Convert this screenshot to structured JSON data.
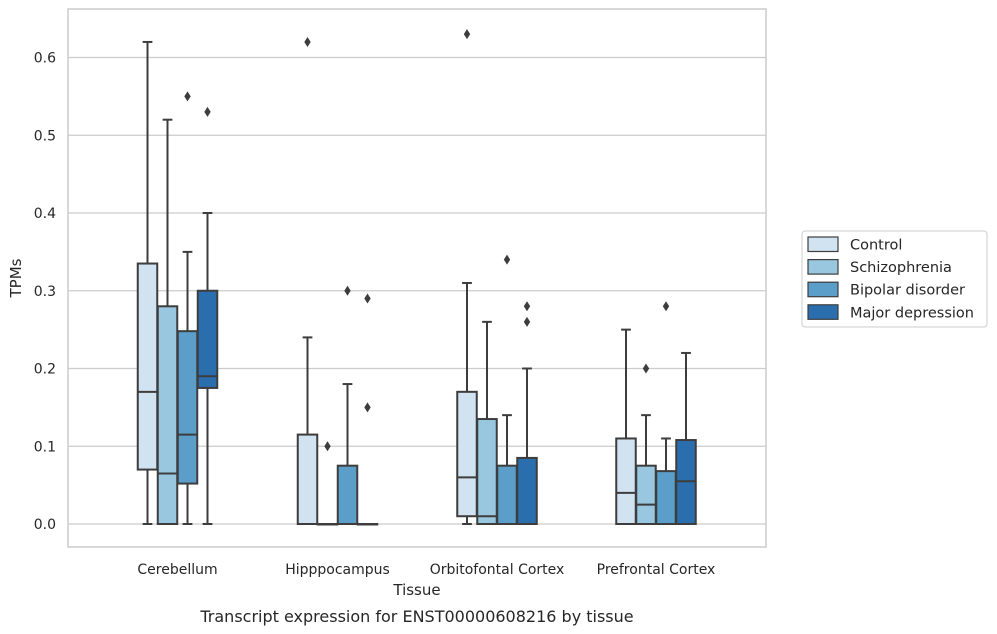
{
  "chart_data": {
    "type": "box",
    "xlabel": "Tissue",
    "ylabel": "TPMs",
    "caption": "Transcript expression for ENST00000608216 by tissue",
    "ylim": [
      -0.03,
      0.665
    ],
    "yticks": [
      "0.0",
      "0.1",
      "0.2",
      "0.3",
      "0.4",
      "0.5",
      "0.6"
    ],
    "grid": "horizontal",
    "legend_position": "right",
    "categories": [
      "Cerebellum",
      "Hipppocampus",
      "Orbitofontal Cortex",
      "Prefrontal Cortex"
    ],
    "series": [
      {
        "name": "Control",
        "color": "#d1e2f1",
        "boxes": [
          {
            "min": 0.0,
            "q1": 0.07,
            "median": 0.17,
            "q3": 0.335,
            "max": 0.62,
            "outliers": []
          },
          {
            "min": 0.0,
            "q1": 0.0,
            "median": 0.0,
            "q3": 0.115,
            "max": 0.24,
            "outliers": [
              0.62
            ]
          },
          {
            "min": 0.0,
            "q1": 0.01,
            "median": 0.06,
            "q3": 0.17,
            "max": 0.31,
            "outliers": [
              0.63
            ]
          },
          {
            "min": 0.0,
            "q1": 0.0,
            "median": 0.04,
            "q3": 0.11,
            "max": 0.25,
            "outliers": []
          }
        ]
      },
      {
        "name": "Schizophrenia",
        "color": "#9ac7e0",
        "boxes": [
          {
            "min": 0.0,
            "q1": 0.0,
            "median": 0.065,
            "q3": 0.28,
            "max": 0.52,
            "outliers": []
          },
          {
            "min": 0.0,
            "q1": 0.0,
            "median": 0.0,
            "q3": 0.0,
            "max": 0.0,
            "outliers": [
              0.1
            ]
          },
          {
            "min": 0.0,
            "q1": 0.0,
            "median": 0.01,
            "q3": 0.135,
            "max": 0.26,
            "outliers": []
          },
          {
            "min": 0.0,
            "q1": 0.0,
            "median": 0.025,
            "q3": 0.075,
            "max": 0.14,
            "outliers": [
              0.2
            ]
          }
        ]
      },
      {
        "name": "Bipolar disorder",
        "color": "#5a9ec9",
        "boxes": [
          {
            "min": 0.0,
            "q1": 0.052,
            "median": 0.115,
            "q3": 0.248,
            "max": 0.35,
            "outliers": [
              0.55
            ]
          },
          {
            "min": 0.0,
            "q1": 0.0,
            "median": 0.0,
            "q3": 0.075,
            "max": 0.18,
            "outliers": [
              0.3
            ]
          },
          {
            "min": 0.0,
            "q1": 0.0,
            "median": 0.0,
            "q3": 0.075,
            "max": 0.14,
            "outliers": [
              0.34
            ]
          },
          {
            "min": 0.0,
            "q1": 0.0,
            "median": 0.0,
            "q3": 0.068,
            "max": 0.11,
            "outliers": [
              0.28
            ]
          }
        ]
      },
      {
        "name": "Major depression",
        "color": "#2a6eae",
        "boxes": [
          {
            "min": 0.0,
            "q1": 0.175,
            "median": 0.19,
            "q3": 0.3,
            "max": 0.4,
            "outliers": [
              0.53
            ]
          },
          {
            "min": 0.0,
            "q1": 0.0,
            "median": 0.0,
            "q3": 0.0,
            "max": 0.0,
            "outliers": [
              0.15,
              0.29
            ]
          },
          {
            "min": 0.0,
            "q1": 0.0,
            "median": 0.0,
            "q3": 0.085,
            "max": 0.2,
            "outliers": [
              0.26,
              0.28
            ]
          },
          {
            "min": 0.0,
            "q1": 0.0,
            "median": 0.055,
            "q3": 0.108,
            "max": 0.22,
            "outliers": []
          }
        ]
      }
    ]
  }
}
